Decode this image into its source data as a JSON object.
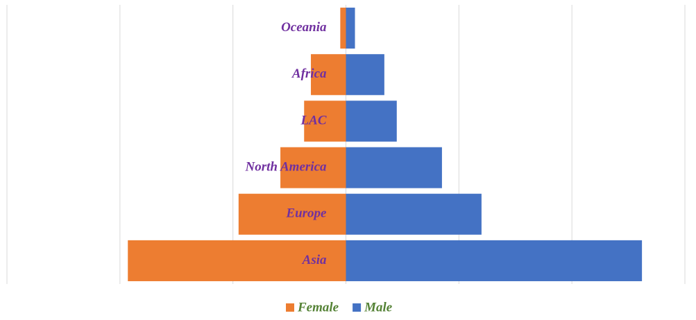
{
  "chart_data": {
    "type": "butterfly",
    "categories": [
      "Oceania",
      "Africa",
      "LAC",
      "North America",
      "Europe",
      "Asia"
    ],
    "series": [
      {
        "name": "Female",
        "color": "#ed7d31",
        "values": [
          -5,
          -31,
          -37,
          -58,
          -95,
          -193
        ]
      },
      {
        "name": "Male",
        "color": "#4472c4",
        "values": [
          8,
          34,
          45,
          85,
          120,
          262
        ]
      }
    ],
    "xlim": [
      -300,
      300
    ],
    "xticks": [
      -300,
      -200,
      -100,
      0,
      100,
      200,
      300
    ],
    "grid": true
  }
}
